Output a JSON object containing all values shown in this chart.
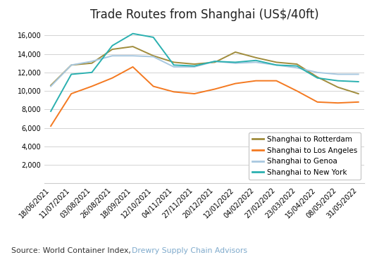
{
  "title": "Trade Routes from Shanghai (US$/40ft)",
  "source_text": "Source: World Container Index, ",
  "source_link": "Drewry Supply Chain Advisors",
  "x_labels": [
    "18/06/2021",
    "11/07/2021",
    "03/08/2021",
    "26/08/2021",
    "18/09/2021",
    "12/10/2021",
    "04/11/2021",
    "27/11/2021",
    "20/12/2021",
    "12/01/2022",
    "04/02/2022",
    "27/02/2022",
    "23/03/2022",
    "15/04/2022",
    "08/05/2022",
    "31/05/2022"
  ],
  "ylim": [
    0,
    17000
  ],
  "yticks": [
    2000,
    4000,
    6000,
    8000,
    10000,
    12000,
    14000,
    16000
  ],
  "series": {
    "Shanghai to Rotterdam": {
      "color": "#a08c3c",
      "data": [
        10600,
        12800,
        13000,
        14500,
        14800,
        13800,
        13100,
        12900,
        13100,
        14200,
        13600,
        13100,
        12900,
        11500,
        10400,
        9700
      ]
    },
    "Shanghai to Los Angeles": {
      "color": "#f47920",
      "data": [
        6200,
        9700,
        10500,
        11400,
        12600,
        10500,
        9900,
        9700,
        10200,
        10800,
        11100,
        11100,
        10000,
        8800,
        8700,
        8800
      ]
    },
    "Shanghai to Genoa": {
      "color": "#a8c8e0",
      "data": [
        10500,
        12800,
        13200,
        13800,
        13800,
        13700,
        12600,
        12600,
        13200,
        13000,
        13100,
        12800,
        12500,
        12000,
        11800,
        11800
      ]
    },
    "Shanghai to New York": {
      "color": "#2ab0b0",
      "data": [
        7800,
        11800,
        12000,
        14900,
        16200,
        15800,
        12800,
        12700,
        13200,
        13100,
        13300,
        12800,
        12700,
        11400,
        11100,
        11000
      ]
    }
  },
  "legend_order": [
    "Shanghai to Rotterdam",
    "Shanghai to Los Angeles",
    "Shanghai to Genoa",
    "Shanghai to New York"
  ],
  "background_color": "#ffffff",
  "footer_bg": "#dce6f0",
  "title_fontsize": 12,
  "tick_fontsize": 7,
  "legend_fontsize": 7.5
}
